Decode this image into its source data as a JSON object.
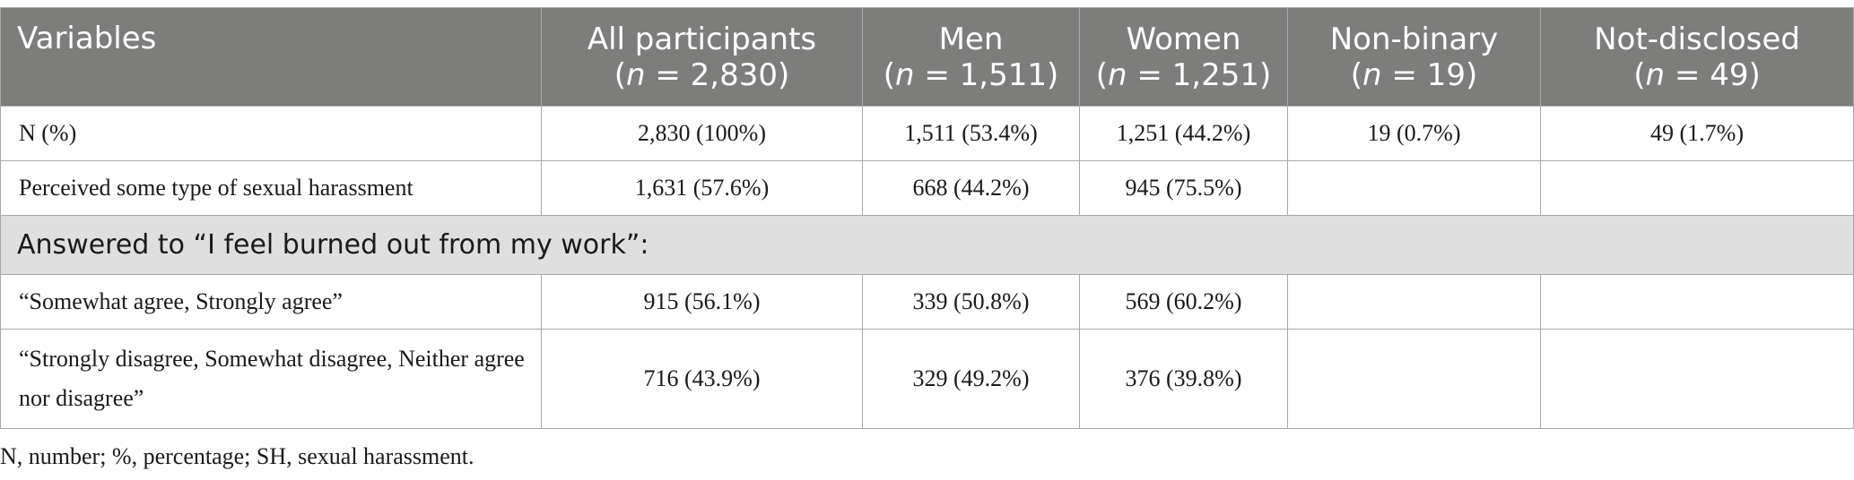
{
  "table": {
    "headers": [
      {
        "title": "Variables",
        "n_label": "",
        "n_value": ""
      },
      {
        "title": "All participants",
        "n_label": "n",
        "n_value": " = 2,830)"
      },
      {
        "title": "Men",
        "n_label": "n",
        "n_value": " = 1,511)"
      },
      {
        "title": "Women",
        "n_label": "n",
        "n_value": " = 1,251)"
      },
      {
        "title": "Non-binary",
        "n_label": "n",
        "n_value": " = 19)"
      },
      {
        "title": "Not-disclosed",
        "n_label": "n",
        "n_value": " = 49)"
      }
    ],
    "paren_open": "(",
    "rows": [
      {
        "label": "N (%)",
        "cells": [
          "2,830 (100%)",
          "1,511 (53.4%)",
          "1,251 (44.2%)",
          "19 (0.7%)",
          "49 (1.7%)"
        ]
      },
      {
        "label": "Perceived some type of sexual harassment",
        "cells": [
          "1,631 (57.6%)",
          "668 (44.2%)",
          "945 (75.5%)",
          "",
          ""
        ]
      }
    ],
    "section_title": "Answered to “I feel burned out from my work”:",
    "section_rows": [
      {
        "label": "“Somewhat agree, Strongly agree”",
        "cells": [
          "915 (56.1%)",
          "339 (50.8%)",
          "569 (60.2%)",
          "",
          ""
        ]
      },
      {
        "label": "“Strongly disagree, Somewhat disagree, Neither agree nor disagree”",
        "cells": [
          "716 (43.9%)",
          "329 (49.2%)",
          "376 (39.8%)",
          "",
          ""
        ]
      }
    ]
  },
  "footnote": "N, number; %, percentage; SH, sexual harassment.",
  "colors": {
    "header_bg": "#7d7e7c",
    "section_bg": "#e0dfdf",
    "border": "#a9a9a9"
  }
}
